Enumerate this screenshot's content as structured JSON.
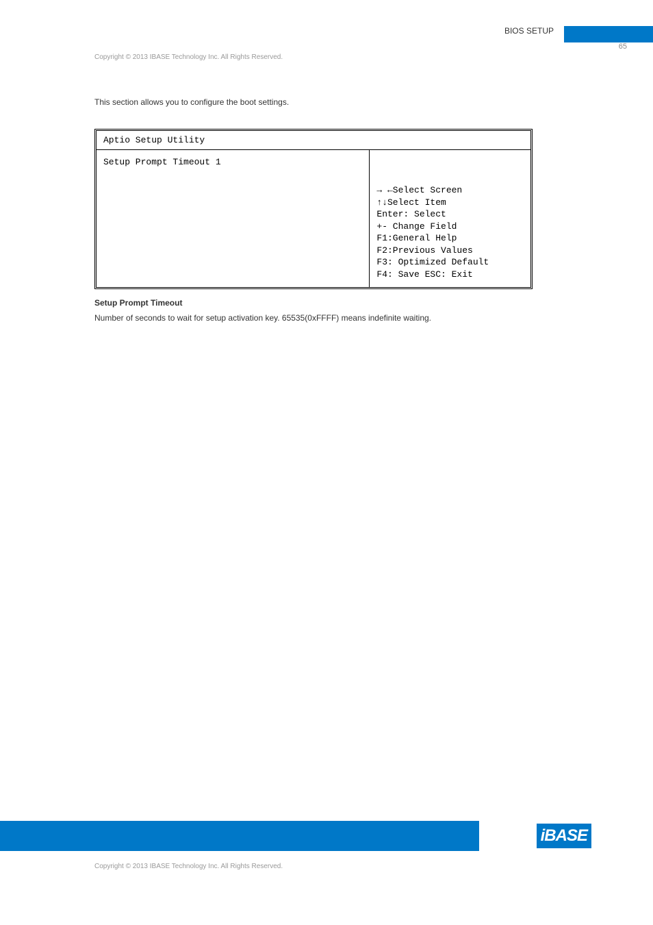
{
  "header": {
    "section": "BIOS SETUP",
    "page_number": "65",
    "copyright_top": "Copyright © 2013 IBASE Technology Inc. All Rights Reserved."
  },
  "intro": "This section allows you to configure the boot settings.",
  "bios": {
    "title": "Aptio Setup Utility",
    "setting_row": "Setup Prompt Timeout  1",
    "help": {
      "line1": "→ ←Select Screen",
      "line2": "↑↓Select Item",
      "line3": "Enter: Select",
      "line4": "+- Change Field",
      "line5": "F1:General Help",
      "line6": "F2:Previous Values",
      "line7": "F3: Optimized Default",
      "line8": "F4: Save  ESC: Exit"
    }
  },
  "setting": {
    "name": "Setup Prompt Timeout",
    "description": "Number of seconds to wait for setup activation key. 65535(0xFFFF) means indefinite waiting."
  },
  "footer": {
    "logo_text": "iBASE",
    "copyright": "Copyright © 2013 IBASE Technology Inc. All Rights Reserved."
  },
  "colors": {
    "brand_blue": "#0078c8",
    "text_gray": "#333333",
    "light_gray": "#999999"
  }
}
